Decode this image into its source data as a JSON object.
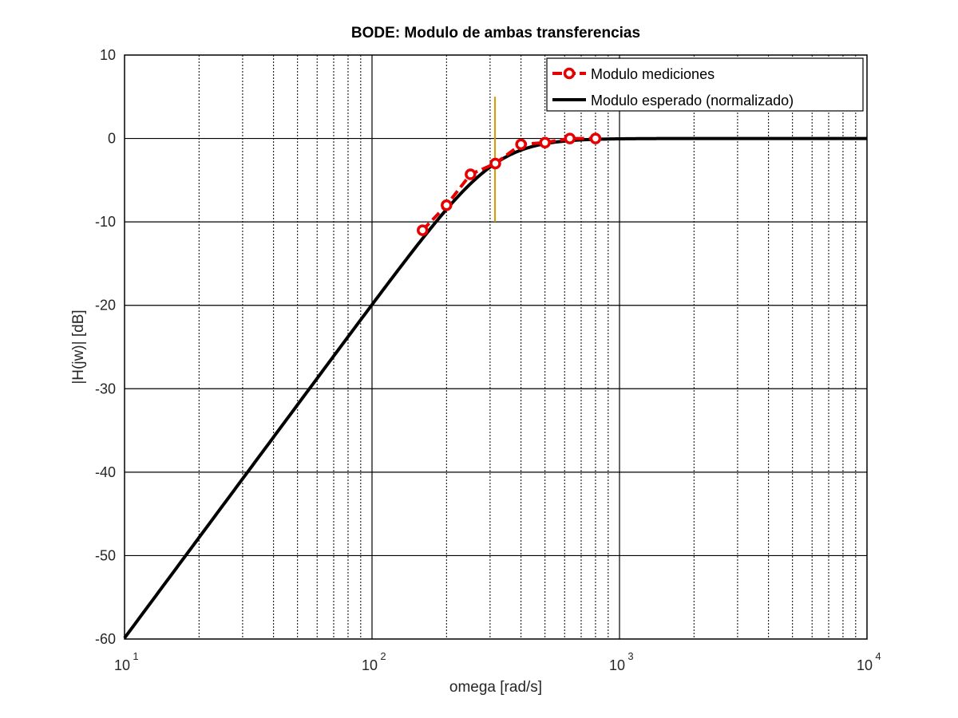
{
  "chart_data": {
    "type": "line",
    "title": "BODE: Modulo de ambas transferencias",
    "xlabel": "omega [rad/s]",
    "ylabel": "|H(jw)| [dB]",
    "xscale": "log",
    "xlim": [
      10,
      10000
    ],
    "ylim": [
      -60,
      10
    ],
    "x_ticks": [
      {
        "base": "10",
        "exp": "1"
      },
      {
        "base": "10",
        "exp": "2"
      },
      {
        "base": "10",
        "exp": "3"
      },
      {
        "base": "10",
        "exp": "4"
      }
    ],
    "y_ticks": [
      "10",
      "0",
      "-10",
      "-20",
      "-30",
      "-40",
      "-50",
      "-60"
    ],
    "grid": true,
    "legend_position": "top-right",
    "series": [
      {
        "name": "Modulo mediciones",
        "color": "#e60000",
        "style": "dashed-markers",
        "x": [
          160,
          200,
          250,
          315,
          400,
          500,
          630,
          800
        ],
        "y": [
          -11,
          -8,
          -4.3,
          -3,
          -0.7,
          -0.5,
          0,
          0
        ]
      },
      {
        "name": "Modulo esperado (normalizado)",
        "color": "#000000",
        "style": "solid",
        "model": "second-order high-pass, wc = 314 rad/s, Butterworth"
      }
    ],
    "annotations": [
      {
        "type": "vline",
        "x": 314,
        "y_range": [
          -10,
          5
        ],
        "color": "#d99a00"
      }
    ]
  }
}
